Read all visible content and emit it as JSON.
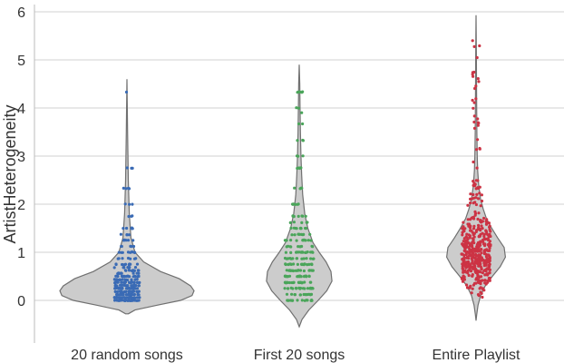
{
  "chart_data": {
    "type": "violin",
    "ylabel": "ArtistHeterogeneity",
    "xlabel": "",
    "ylim": [
      -0.9,
      6.05
    ],
    "yticks": [
      "0",
      "1",
      "2",
      "3",
      "4",
      "5",
      "6"
    ],
    "categories": [
      "20 random songs",
      "First 20 songs",
      "Entire Playlist"
    ],
    "grid": "horizontal",
    "violin_color": "#cccccc",
    "series": [
      {
        "category": "20 random songs",
        "point_color": "#3a6bb5",
        "range": [
          -0.28,
          4.6
        ],
        "density": [
          [
            -0.28,
            0.02
          ],
          [
            -0.2,
            0.12
          ],
          [
            -0.1,
            0.45
          ],
          [
            0,
            0.8
          ],
          [
            0.1,
            0.97
          ],
          [
            0.2,
            1.0
          ],
          [
            0.3,
            0.95
          ],
          [
            0.45,
            0.78
          ],
          [
            0.6,
            0.5
          ],
          [
            0.8,
            0.25
          ],
          [
            1.0,
            0.12
          ],
          [
            1.3,
            0.06
          ],
          [
            1.8,
            0.035
          ],
          [
            2.5,
            0.02
          ],
          [
            3.5,
            0.01
          ],
          [
            4.6,
            0.0
          ]
        ],
        "points_sample": [
          0.0,
          0.06,
          0.12,
          0.18,
          0.25,
          0.31,
          0.37,
          0.43,
          0.5,
          0.56,
          0.62,
          0.68,
          0.75,
          0.87,
          1.0,
          1.12,
          1.25,
          1.37,
          1.5,
          1.75,
          2.0,
          2.33,
          2.75,
          4.33
        ]
      },
      {
        "category": "First 20 songs",
        "point_color": "#4aa55a",
        "range": [
          -0.55,
          4.9
        ],
        "density": [
          [
            -0.55,
            0.0
          ],
          [
            -0.4,
            0.08
          ],
          [
            -0.2,
            0.28
          ],
          [
            0,
            0.55
          ],
          [
            0.2,
            0.8
          ],
          [
            0.4,
            0.95
          ],
          [
            0.6,
            0.92
          ],
          [
            0.8,
            0.78
          ],
          [
            1.0,
            0.58
          ],
          [
            1.2,
            0.4
          ],
          [
            1.5,
            0.25
          ],
          [
            1.8,
            0.16
          ],
          [
            2.2,
            0.1
          ],
          [
            2.6,
            0.07
          ],
          [
            3.0,
            0.05
          ],
          [
            3.5,
            0.035
          ],
          [
            4.0,
            0.025
          ],
          [
            4.5,
            0.015
          ],
          [
            4.9,
            0.0
          ]
        ],
        "points_sample": [
          0.0,
          0.12,
          0.25,
          0.37,
          0.5,
          0.62,
          0.75,
          0.87,
          1.0,
          1.12,
          1.25,
          1.37,
          1.5,
          1.62,
          1.75,
          2.0,
          2.33,
          2.75,
          3.0,
          3.33,
          3.67,
          4.0,
          4.33
        ]
      },
      {
        "category": "Entire Playlist",
        "point_color": "#cc3344",
        "range": [
          -0.42,
          5.93
        ],
        "density": [
          [
            -0.42,
            0.0
          ],
          [
            -0.3,
            0.02
          ],
          [
            -0.1,
            0.06
          ],
          [
            0.1,
            0.14
          ],
          [
            0.3,
            0.28
          ],
          [
            0.5,
            0.5
          ],
          [
            0.7,
            0.74
          ],
          [
            0.9,
            0.9
          ],
          [
            1.1,
            0.86
          ],
          [
            1.3,
            0.66
          ],
          [
            1.5,
            0.48
          ],
          [
            1.7,
            0.32
          ],
          [
            1.9,
            0.22
          ],
          [
            2.1,
            0.14
          ],
          [
            2.4,
            0.08
          ],
          [
            2.7,
            0.05
          ],
          [
            3.0,
            0.035
          ],
          [
            3.5,
            0.025
          ],
          [
            4.0,
            0.02
          ],
          [
            4.5,
            0.015
          ],
          [
            5.0,
            0.01
          ],
          [
            5.5,
            0.006
          ],
          [
            5.93,
            0.0
          ]
        ],
        "points_sample": [
          0.2,
          0.4,
          0.6,
          0.8,
          1.0,
          1.2,
          1.4,
          1.6,
          1.8,
          2.0,
          2.2,
          2.6,
          3.0,
          3.4,
          3.8,
          4.2,
          4.6,
          5.0,
          5.3,
          5.4
        ]
      }
    ]
  }
}
